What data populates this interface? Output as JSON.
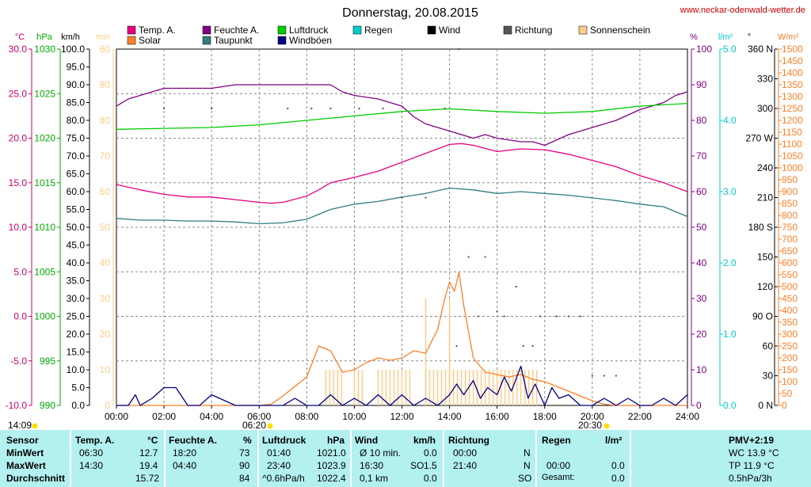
{
  "header": {
    "title": "Donnerstag, 20.08.2015",
    "site": "www.neckar-odenwald-wetter.de",
    "sun_rise_bar": "14:09",
    "sunrise": "06:20",
    "sunset": "20:30"
  },
  "legend": [
    {
      "label": "Temp. A.",
      "color": "#e6007e"
    },
    {
      "label": "Solar",
      "color": "#ff7f27"
    },
    {
      "label": "Feuchte A.",
      "color": "#800080"
    },
    {
      "label": "Taupunkt",
      "color": "#2f7f7f"
    },
    {
      "label": "Luftdruck",
      "color": "#00cc00"
    },
    {
      "label": "Windböen",
      "color": "#000080"
    },
    {
      "label": "Regen",
      "color": "#00cccc"
    },
    {
      "label": "Wind",
      "color": "#000000"
    },
    {
      "label": "Richtung",
      "color": "#555555"
    },
    {
      "label": "Sonnenschein",
      "color": "#ffcc88"
    }
  ],
  "axes": {
    "units_left": [
      "°C",
      "hPa",
      "km/h",
      "min"
    ],
    "units_right": [
      "%",
      "l/m²",
      "°",
      "W/m²"
    ],
    "temp_ticks": [
      "30.0",
      "25.0",
      "20.0",
      "15.0",
      "10.0",
      "5.0",
      "0.0",
      "-5.0",
      "-10.0"
    ],
    "hpa_ticks": [
      "1030",
      "1025",
      "1020",
      "1015",
      "1010",
      "1005",
      "1000",
      "995",
      "990"
    ],
    "kmh_ticks": [
      "100.0",
      "95.0",
      "90.0",
      "85.0",
      "80.0",
      "75.0",
      "70.0",
      "65.0",
      "60.0",
      "55.0",
      "50.0",
      "45.0",
      "40.0",
      "35.0",
      "30.0",
      "25.0",
      "20.0",
      "15.0",
      "10.0",
      "5.0",
      "0.0"
    ],
    "min_ticks": [
      "60",
      "90",
      "80",
      "70",
      "60",
      "50",
      "40",
      "30",
      "20",
      "10",
      "0"
    ],
    "pct_ticks": [
      "100",
      "90",
      "80",
      "70",
      "60",
      "50",
      "40",
      "30",
      "20",
      "10",
      "0"
    ],
    "rain_ticks": [
      "5.0",
      "4.0",
      "3.0",
      "2.0",
      "1.0",
      "0.0"
    ],
    "dir_ticks": [
      "360 N",
      "330",
      "300",
      "270 W",
      "240",
      "210",
      "180 S",
      "150",
      "120",
      "90 O",
      "60",
      "30",
      "0 N"
    ],
    "solar_ticks": [
      "1500",
      "1450",
      "1400",
      "1350",
      "1300",
      "1250",
      "1200",
      "1150",
      "1100",
      "1050",
      "1000",
      "950",
      "900",
      "850",
      "800",
      "750",
      "700",
      "650",
      "600",
      "550",
      "500",
      "450",
      "400",
      "350",
      "300",
      "250",
      "200",
      "150",
      "100",
      "50",
      "0"
    ],
    "x_ticks": [
      "00:00",
      "02:00",
      "04:00",
      "06:00",
      "08:00",
      "10:00",
      "12:00",
      "14:00",
      "16:00",
      "18:00",
      "20:00",
      "22:00",
      "24:00"
    ]
  },
  "chart_data": {
    "type": "line",
    "title": "Donnerstag, 20.08.2015",
    "x_unit": "hour",
    "x_range": [
      0,
      24
    ],
    "series": [
      {
        "name": "Temp. A.",
        "unit": "°C",
        "color": "#e6007e",
        "x": [
          0,
          1,
          2,
          3,
          4,
          5,
          6,
          6.5,
          7,
          8,
          8.5,
          9,
          10,
          11,
          12,
          12.5,
          13,
          13.5,
          14,
          14.5,
          15,
          16,
          17,
          18,
          19,
          20,
          21,
          22,
          23,
          24
        ],
        "y": [
          14.8,
          14.2,
          13.7,
          13.4,
          13.4,
          13.1,
          12.8,
          12.7,
          12.8,
          13.5,
          14.2,
          15.0,
          15.6,
          16.3,
          17.3,
          17.8,
          18.3,
          18.8,
          19.3,
          19.4,
          19.2,
          18.5,
          18.8,
          18.7,
          18.2,
          17.5,
          16.8,
          15.8,
          15.0,
          14.0
        ]
      },
      {
        "name": "Feuchte A.",
        "unit": "%",
        "color": "#800080",
        "x": [
          0,
          0.5,
          1,
          2,
          3,
          4,
          5,
          6,
          7,
          8,
          9,
          9.5,
          10,
          11,
          12,
          12.5,
          13,
          14,
          15,
          15.5,
          16,
          17,
          17.5,
          18,
          19,
          20,
          21,
          22,
          23,
          23.5,
          24
        ],
        "y": [
          84,
          86,
          87,
          89,
          89,
          89,
          90,
          90,
          90,
          90,
          90,
          88,
          87,
          86,
          84,
          81,
          79,
          77,
          75,
          76,
          75,
          74,
          74,
          73,
          76,
          78,
          80,
          83,
          85,
          87,
          88
        ]
      },
      {
        "name": "Luftdruck",
        "unit": "hPa",
        "color": "#00cc00",
        "x": [
          0,
          2,
          4,
          6,
          8,
          10,
          12,
          14,
          16,
          18,
          20,
          22,
          24
        ],
        "y": [
          1021.0,
          1021.1,
          1021.2,
          1021.5,
          1022.0,
          1022.5,
          1023.0,
          1023.3,
          1023.0,
          1022.8,
          1023.0,
          1023.6,
          1023.9
        ]
      },
      {
        "name": "Taupunkt",
        "unit": "°C",
        "color": "#2f7f7f",
        "x": [
          0,
          1,
          2,
          3,
          4,
          5,
          6,
          7,
          8,
          9,
          10,
          11,
          12,
          13,
          14,
          15,
          16,
          17,
          18,
          19,
          20,
          21,
          22,
          23,
          24
        ],
        "y": [
          11.0,
          10.8,
          10.8,
          10.7,
          10.7,
          10.6,
          10.4,
          10.5,
          10.9,
          12.0,
          12.6,
          12.9,
          13.4,
          13.8,
          14.4,
          14.2,
          13.8,
          14.0,
          13.8,
          13.6,
          13.3,
          13.0,
          12.6,
          12.3,
          11.2
        ]
      },
      {
        "name": "Solar",
        "unit": "W/m²",
        "color": "#ff7f27",
        "x": [
          0,
          6,
          6.5,
          7,
          8,
          8.5,
          9,
          9.5,
          10,
          10.5,
          11,
          11.5,
          12,
          12.5,
          13,
          13.5,
          13.8,
          14,
          14.2,
          14.4,
          14.6,
          14.8,
          15,
          15.5,
          16,
          16.5,
          17,
          17.5,
          18,
          18.5,
          19,
          19.5,
          20,
          20.5,
          21,
          24
        ],
        "y": [
          0,
          0,
          5,
          40,
          120,
          250,
          230,
          140,
          150,
          180,
          200,
          190,
          200,
          230,
          220,
          320,
          450,
          520,
          480,
          560,
          420,
          310,
          200,
          140,
          130,
          120,
          130,
          110,
          100,
          80,
          60,
          40,
          20,
          5,
          0,
          0
        ]
      },
      {
        "name": "Windböen",
        "unit": "km/h",
        "color": "#000080",
        "x": [
          0,
          0.5,
          0.8,
          1,
          1.5,
          2,
          2.5,
          3,
          3.5,
          4,
          5,
          6,
          6.5,
          7,
          7.5,
          8,
          8.5,
          9,
          9.5,
          10,
          10.5,
          11,
          11.5,
          12,
          12.5,
          13,
          13.5,
          14,
          14.3,
          14.6,
          15,
          15.3,
          15.6,
          16,
          16.3,
          16.6,
          17,
          17.3,
          17.6,
          18,
          18.3,
          18.6,
          19,
          19.5,
          20,
          20.5,
          21,
          21.5,
          22,
          22.5,
          23,
          23.5,
          24
        ],
        "y": [
          0,
          0,
          3,
          0,
          2,
          5,
          5,
          0,
          0,
          3,
          0,
          0,
          0,
          0,
          2,
          0,
          0,
          3,
          0,
          2,
          0,
          3,
          0,
          3,
          0,
          2,
          0,
          3,
          6,
          3,
          7,
          2,
          5,
          3,
          8,
          4,
          11,
          2,
          6,
          0,
          5,
          2,
          3,
          0,
          0,
          2,
          0,
          2,
          0,
          0,
          2,
          0,
          3
        ]
      },
      {
        "name": "Sonnenschein",
        "unit": "min",
        "color": "#ffcc88",
        "x_ranges": [
          [
            8.8,
            9.5
          ],
          [
            10.0,
            10.5
          ],
          [
            11.0,
            12.5
          ],
          [
            13.0,
            14.0
          ],
          [
            14.0,
            17.0
          ],
          [
            17.0,
            17.7
          ]
        ],
        "value": 10
      }
    ],
    "direction_points": [
      [
        2.0,
        300
      ],
      [
        4.0,
        300
      ],
      [
        7.2,
        300
      ],
      [
        8.2,
        300
      ],
      [
        9.0,
        300
      ],
      [
        10.2,
        300
      ],
      [
        11.2,
        300
      ],
      [
        12.0,
        210
      ],
      [
        13.0,
        210
      ],
      [
        13.8,
        300
      ],
      [
        14.4,
        360
      ],
      [
        14.3,
        60
      ],
      [
        14.8,
        150
      ],
      [
        15.2,
        90
      ],
      [
        15.5,
        150
      ],
      [
        16.0,
        95
      ],
      [
        16.3,
        90
      ],
      [
        16.8,
        120
      ],
      [
        17.1,
        60
      ],
      [
        17.5,
        60
      ],
      [
        17.8,
        90
      ],
      [
        18.5,
        90
      ],
      [
        19.0,
        90
      ],
      [
        19.5,
        90
      ],
      [
        20.0,
        30
      ],
      [
        20.5,
        30
      ],
      [
        21.0,
        30
      ]
    ]
  },
  "stats": {
    "sensor": "Sensor",
    "rows": [
      "MinWert",
      "MaxWert",
      "Durchschnitt"
    ],
    "temp": {
      "head": "Temp. A.",
      "unit": "°C",
      "min_time": "06:30",
      "min_val": "12.7",
      "max_time": "14:30",
      "max_val": "19.4",
      "avg": "15.72"
    },
    "humidity": {
      "head": "Feuchte A.",
      "unit": "%",
      "min_time": "18:20",
      "min_val": "73",
      "max_time": "04:40",
      "max_val": "90",
      "avg": "84"
    },
    "pressure": {
      "head": "Luftdruck",
      "unit": "hPa",
      "min_time": "01:40",
      "min_val": "1021.0",
      "max_time": "23:40",
      "max_val": "1023.9",
      "trend": "^0.6hPa/h",
      "avg": "1022.4"
    },
    "wind": {
      "head": "Wind",
      "unit": "km/h",
      "r1_label": "Ø 10 min.",
      "r1_val": "0.0",
      "r2_label": "16:30",
      "r2_dir": "SO",
      "r2_val": "1.5",
      "r3_label": "0,1 km",
      "r3_val": "0.0"
    },
    "direction": {
      "head": "Richtung",
      "r1_time": "00:00",
      "r1_dir": "N",
      "r2_time": "21:40",
      "r2_dir": "N",
      "r3_dir": "SO"
    },
    "rain": {
      "head": "Regen",
      "unit": "l/m²",
      "r2_time": "00:00",
      "r2_val": "0.0",
      "r3_label": "Gesamt:",
      "r3_val": "0.0"
    },
    "pmv": {
      "head": "PMV+2:19",
      "wc": "WC 13.9 °C",
      "tp": "TP 11.9 °C",
      "trend": "0.5hPa/3h"
    }
  }
}
